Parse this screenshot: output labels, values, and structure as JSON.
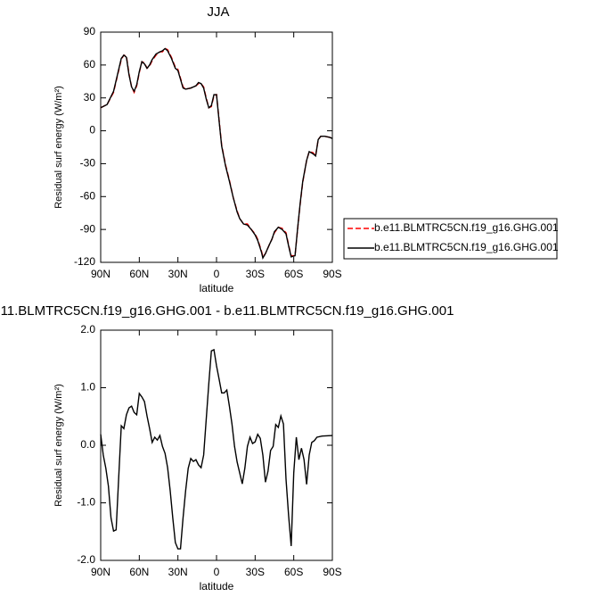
{
  "chart_data": [
    {
      "type": "line",
      "title": "JJA",
      "xlabel": "latitude",
      "ylabel": "Residual surf energy (W/m²)",
      "x": [
        90,
        85,
        80,
        77,
        74,
        72,
        70,
        68,
        66,
        64,
        62,
        60,
        58,
        56,
        54,
        52,
        50,
        47,
        44,
        42,
        40,
        38,
        35,
        32,
        30,
        28,
        26,
        24,
        20,
        16,
        14,
        12,
        10,
        8,
        6,
        4,
        2,
        0,
        -2,
        -4,
        -7,
        -10,
        -13,
        -16,
        -18,
        -21,
        -24,
        -27,
        -30,
        -32,
        -35,
        -36,
        -38,
        -41,
        -43,
        -45,
        -48,
        -51,
        -54,
        -56,
        -58,
        -61,
        -63,
        -65,
        -67,
        -70,
        -72,
        -75,
        -77,
        -79,
        -81,
        -84,
        -88,
        -90
      ],
      "series": [
        {
          "name": "b.e11.BLMTRC5CN.f19_g16.GHG.001",
          "color": "#ff0000",
          "linestyle": "dashed",
          "values": [
            21,
            24,
            35,
            50,
            65,
            69,
            68,
            52,
            40,
            35,
            41,
            53,
            63,
            62,
            57,
            59,
            64,
            69,
            72,
            72,
            75,
            74,
            67,
            58,
            56,
            48,
            40,
            38,
            39,
            41,
            43,
            43,
            40,
            30,
            21,
            22,
            32,
            33,
            10,
            -13,
            -31,
            -45,
            -61,
            -73,
            -80,
            -85,
            -85,
            -90,
            -94,
            -99,
            -110,
            -115,
            -112,
            -104,
            -99,
            -93,
            -88,
            -89,
            -93,
            -104,
            -114,
            -114,
            -90,
            -67,
            -47,
            -27,
            -19,
            -20,
            -23,
            -8,
            -5,
            -5,
            -6,
            -7
          ]
        },
        {
          "name": "b.e11.BLMTRC5CN.f19_g16.GHG.001",
          "color": "#000000",
          "linestyle": "solid",
          "values": [
            21,
            24,
            36,
            51,
            66,
            69,
            67,
            51,
            40,
            36,
            42,
            54,
            63,
            61,
            57,
            60,
            65,
            70,
            72,
            73,
            75,
            73,
            66,
            57,
            55,
            47,
            39,
            38,
            39,
            41,
            44,
            43,
            39,
            29,
            21,
            23,
            33,
            33,
            9,
            -14,
            -32,
            -46,
            -61,
            -74,
            -80,
            -85,
            -86,
            -90,
            -95,
            -100,
            -111,
            -116,
            -112,
            -104,
            -99,
            -92,
            -88,
            -90,
            -94,
            -105,
            -115,
            -114,
            -89,
            -66,
            -46,
            -27,
            -19,
            -21,
            -23,
            -8,
            -5,
            -5,
            -6,
            -7
          ]
        }
      ],
      "xlim": [
        90,
        -90
      ],
      "ylim": [
        -120,
        90
      ],
      "xticks": [
        {
          "value": 90,
          "label": "90N"
        },
        {
          "value": 60,
          "label": "60N"
        },
        {
          "value": 30,
          "label": "30N"
        },
        0,
        {
          "value": -30,
          "label": "30S"
        },
        {
          "value": -60,
          "label": "60S"
        },
        {
          "value": -90,
          "label": "90S"
        }
      ],
      "yticks": [
        -120,
        -90,
        -60,
        -30,
        0,
        30,
        60,
        90
      ],
      "legend": "right"
    },
    {
      "type": "line",
      "title": "11.BLMTRC5CN.f19_g16.GHG.001 - b.e11.BLMTRC5CN.f19_g16.GHG.001",
      "xlabel": "latitude",
      "ylabel": "Residual surf energy (W/m²)",
      "x": [
        90,
        88,
        86,
        84,
        82,
        80,
        78,
        76,
        74,
        72,
        70,
        68,
        66,
        64,
        62,
        60,
        58,
        56,
        54,
        52,
        50,
        48,
        46,
        44,
        42,
        40,
        38,
        36,
        34,
        32,
        30,
        28,
        26,
        24,
        22,
        20,
        18,
        16,
        14,
        12,
        10,
        8,
        6,
        4,
        2,
        0,
        -2,
        -4,
        -6,
        -8,
        -10,
        -12,
        -14,
        -16,
        -18,
        -20,
        -22,
        -24,
        -26,
        -28,
        -30,
        -32,
        -34,
        -36,
        -38,
        -40,
        -42,
        -44,
        -46,
        -48,
        -50,
        -52,
        -54,
        -56,
        -58,
        -60,
        -62,
        -64,
        -66,
        -68,
        -70,
        -72,
        -74,
        -76,
        -78,
        -82,
        -90
      ],
      "series": [
        {
          "color": "#000000",
          "linestyle": "solid",
          "values": [
            0.19,
            -0.17,
            -0.4,
            -0.71,
            -1.26,
            -1.49,
            -1.47,
            -0.56,
            0.34,
            0.29,
            0.53,
            0.65,
            0.68,
            0.57,
            0.53,
            0.9,
            0.84,
            0.76,
            0.51,
            0.29,
            0.05,
            0.14,
            0.09,
            0.17,
            -0.02,
            -0.14,
            -0.39,
            -0.79,
            -1.26,
            -1.69,
            -1.8,
            -1.8,
            -1.26,
            -0.79,
            -0.4,
            -0.23,
            -0.28,
            -0.25,
            -0.34,
            -0.39,
            -0.17,
            0.45,
            1.07,
            1.64,
            1.66,
            1.38,
            1.15,
            0.91,
            0.91,
            0.96,
            0.68,
            0.37,
            -0.02,
            -0.29,
            -0.48,
            -0.67,
            -0.4,
            -0.02,
            0.14,
            0.03,
            0.06,
            0.19,
            0.12,
            -0.17,
            -0.64,
            -0.45,
            -0.09,
            -0.02,
            0.36,
            0.31,
            0.51,
            0.37,
            -0.59,
            -1.22,
            -1.75,
            -0.48,
            0.14,
            -0.25,
            -0.05,
            -0.25,
            -0.68,
            -0.17,
            0.05,
            0.08,
            0.14,
            0.16,
            0.17
          ]
        }
      ],
      "xlim": [
        90,
        -90
      ],
      "ylim": [
        -2,
        2
      ],
      "xticks": [
        {
          "value": 90,
          "label": "90N"
        },
        {
          "value": 60,
          "label": "60N"
        },
        {
          "value": 30,
          "label": "30N"
        },
        0,
        {
          "value": -30,
          "label": "30S"
        },
        {
          "value": -60,
          "label": "60S"
        },
        {
          "value": -90,
          "label": "90S"
        }
      ],
      "yticks": [
        {
          "value": -2,
          "label": "-2.0"
        },
        {
          "value": -1,
          "label": "-1.0"
        },
        {
          "value": 0,
          "label": "0.0"
        },
        {
          "value": 1,
          "label": "1.0"
        },
        {
          "value": 2,
          "label": "2.0"
        }
      ]
    }
  ]
}
